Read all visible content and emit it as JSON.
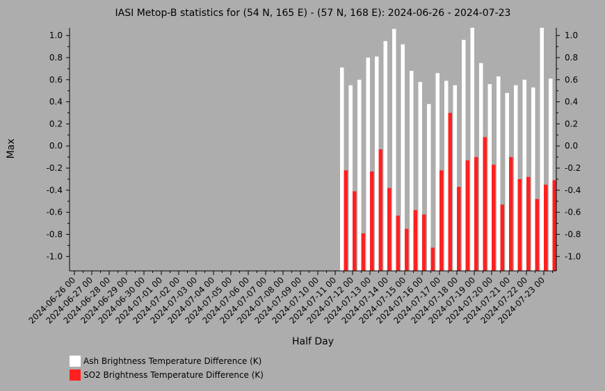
{
  "chart_data": {
    "type": "bar",
    "title": "IASI Metop-B statistics for (54 N, 165 E) - (57 N, 168 E): 2024-06-26 - 2024-07-23",
    "xlabel": "Half Day",
    "ylabel": "Max",
    "ylim": [
      -1.13,
      1.07
    ],
    "yticks": [
      -1.0,
      -0.8,
      -0.6,
      -0.4,
      -0.2,
      0.0,
      0.2,
      0.4,
      0.6,
      0.8,
      1.0
    ],
    "ytick_labels": [
      "-1.0",
      "-0.8",
      "-0.6",
      "-0.4",
      "-0.2",
      "0.0",
      "0.2",
      "0.4",
      "0.6",
      "0.8",
      "1.0"
    ],
    "x_tick_labels": [
      "2024-06-26 00",
      "2024-06-27 00",
      "2024-06-28 00",
      "2024-06-29 00",
      "2024-06-30 00",
      "2024-07-01 00",
      "2024-07-02 00",
      "2024-07-03 00",
      "2024-07-04 00",
      "2024-07-05 00",
      "2024-07-06 00",
      "2024-07-07 00",
      "2024-07-08 00",
      "2024-07-09 00",
      "2024-07-10 00",
      "2024-07-11 00",
      "2024-07-12 00",
      "2024-07-13 00",
      "2024-07-14 00",
      "2024-07-15 00",
      "2024-07-16 00",
      "2024-07-17 00",
      "2024-07-18 00",
      "2024-07-19 00",
      "2024-07-20 00",
      "2024-07-21 00",
      "2024-07-22 00",
      "2024-07-23 00"
    ],
    "categories": [
      "2024-07-11 12",
      "2024-07-12 00",
      "2024-07-12 12",
      "2024-07-13 00",
      "2024-07-13 12",
      "2024-07-14 00",
      "2024-07-14 12",
      "2024-07-15 00",
      "2024-07-15 12",
      "2024-07-16 00",
      "2024-07-16 12",
      "2024-07-17 00",
      "2024-07-17 12",
      "2024-07-18 00",
      "2024-07-18 12",
      "2024-07-19 00",
      "2024-07-19 12",
      "2024-07-20 00",
      "2024-07-20 12",
      "2024-07-21 00",
      "2024-07-21 12",
      "2024-07-22 00",
      "2024-07-22 12",
      "2024-07-23 00",
      "2024-07-23 12"
    ],
    "series": [
      {
        "name": "Ash Brightness Temperature Difference (K)",
        "color": "#ffffff",
        "values": [
          0.71,
          0.55,
          0.6,
          0.8,
          0.81,
          0.95,
          1.06,
          0.92,
          0.68,
          0.58,
          0.38,
          0.66,
          0.59,
          0.55,
          0.96,
          1.07,
          0.75,
          0.56,
          0.63,
          0.48,
          0.55,
          0.6,
          0.53,
          1.07,
          0.61
        ]
      },
      {
        "name": "SO2 Brightness Temperature Difference (K)",
        "color": "#ff2020",
        "values": [
          -0.22,
          -0.41,
          -0.79,
          -0.23,
          -0.03,
          -0.38,
          -0.63,
          -0.75,
          -0.58,
          -0.62,
          -0.92,
          -0.22,
          0.3,
          -0.37,
          -0.13,
          -0.1,
          0.08,
          -0.17,
          -0.53,
          -0.1,
          -0.3,
          -0.28,
          -0.48,
          -0.35,
          -0.31
        ]
      }
    ],
    "legend_position": "bottom-left"
  }
}
